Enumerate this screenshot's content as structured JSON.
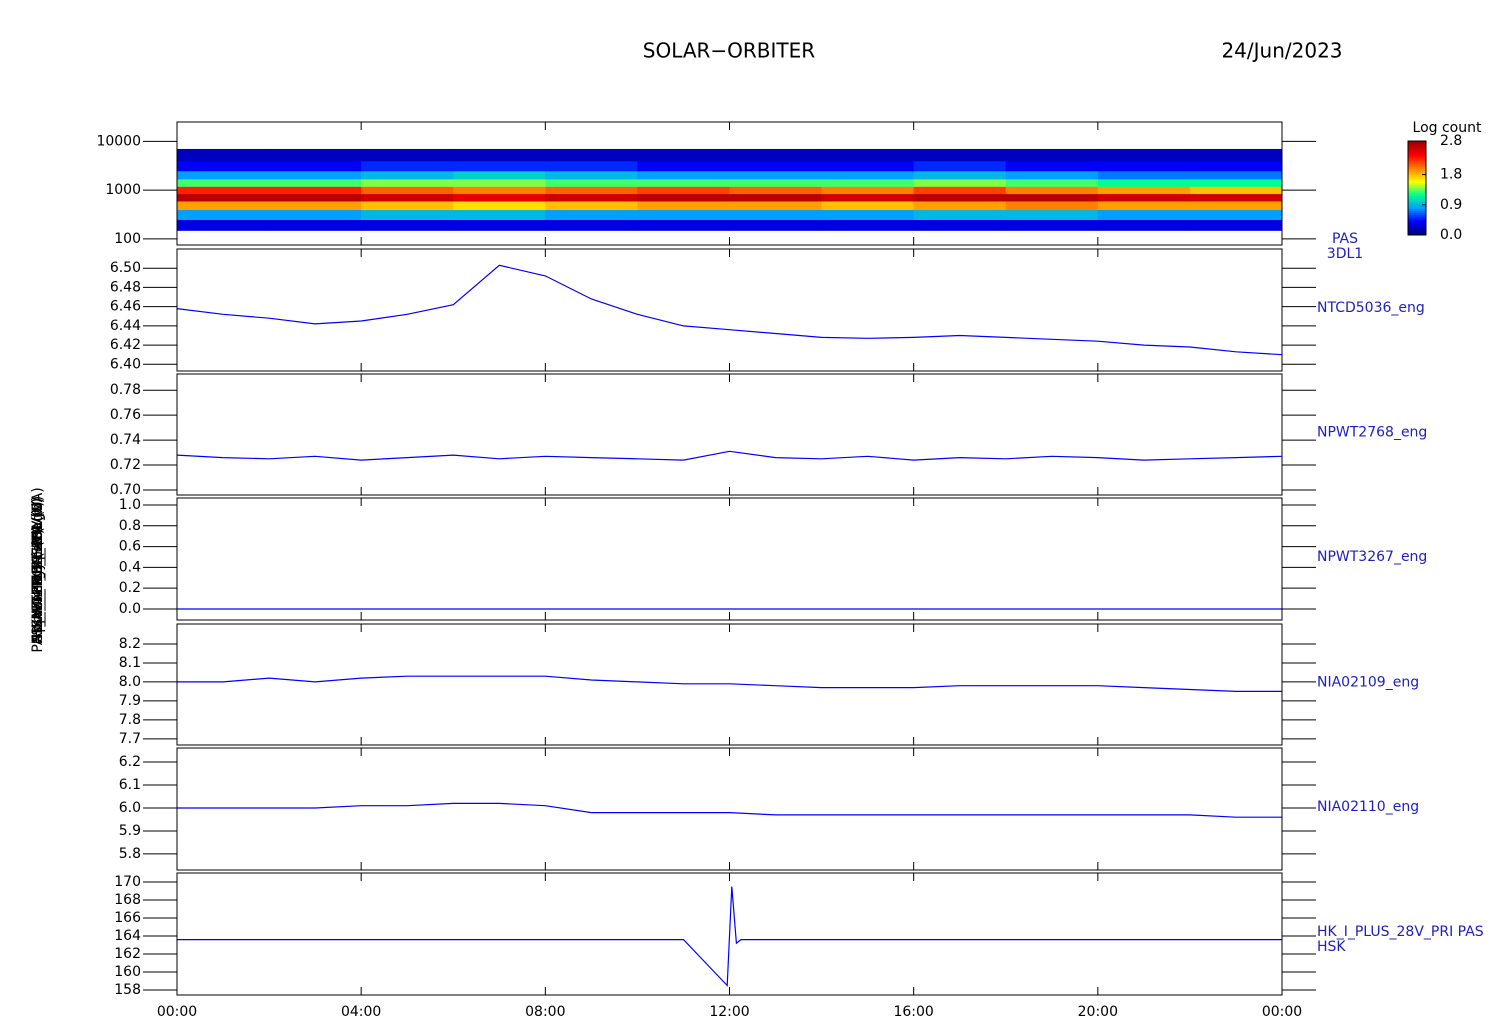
{
  "title": "SOLAR−ORBITER",
  "date": "24/Jun/2023",
  "chart_data": [
    {
      "type": "heatmap",
      "ylabel": "Energy (eV)",
      "log_y": true,
      "ylim": [
        75,
        25000
      ],
      "yticks": [
        100,
        1000,
        10000
      ],
      "x_edges": [
        0,
        2,
        4,
        6,
        8,
        10,
        12,
        14,
        16,
        18,
        20,
        22,
        24
      ],
      "y_edges": [
        150,
        250,
        400,
        600,
        850,
        1200,
        1700,
        2500,
        4000,
        7000
      ],
      "z": [
        [
          0.3,
          0.3,
          0.3,
          0.3,
          0.3,
          0.3,
          0.3,
          0.3,
          0.3,
          0.3,
          0.3,
          0.3
        ],
        [
          0.8,
          0.8,
          0.9,
          0.9,
          0.8,
          0.8,
          0.8,
          0.8,
          0.9,
          0.9,
          0.8,
          0.8
        ],
        [
          1.9,
          1.9,
          1.8,
          1.7,
          1.8,
          1.9,
          1.9,
          1.8,
          1.9,
          2.0,
          1.9,
          1.9
        ],
        [
          2.7,
          2.7,
          2.6,
          2.5,
          2.6,
          2.7,
          2.7,
          2.6,
          2.7,
          2.7,
          2.6,
          2.6
        ],
        [
          2.3,
          2.3,
          2.1,
          2.0,
          2.1,
          2.2,
          2.1,
          2.0,
          2.2,
          2.0,
          1.9,
          1.8
        ],
        [
          1.3,
          1.3,
          1.4,
          1.4,
          1.3,
          1.3,
          1.3,
          1.3,
          1.4,
          1.3,
          1.2,
          1.2
        ],
        [
          0.8,
          0.8,
          0.9,
          1.0,
          0.9,
          0.8,
          0.8,
          0.8,
          0.9,
          0.8,
          0.7,
          0.7
        ],
        [
          0.4,
          0.4,
          0.5,
          0.5,
          0.5,
          0.4,
          0.4,
          0.4,
          0.5,
          0.4,
          0.4,
          0.4
        ],
        [
          0.2,
          0.2,
          0.2,
          0.2,
          0.2,
          0.2,
          0.2,
          0.2,
          0.2,
          0.2,
          0.2,
          0.2
        ]
      ],
      "zlabel": "Log count",
      "zlim": [
        0,
        2.8
      ],
      "zticks": [
        {
          "value": 0,
          "label": "0.0"
        },
        0.9,
        1.8,
        2.8
      ],
      "colormap": [
        "#000080",
        "#0000ff",
        "#00a0ff",
        "#00ff90",
        "#ffff00",
        "#ff8000",
        "#ff0000",
        "#a00000"
      ],
      "labels": [
        "PAS",
        "3DL1"
      ]
    },
    {
      "type": "line",
      "ylabel": "Approx Temp (DegC)",
      "ylim": [
        6.393,
        6.52
      ],
      "yticks": [
        {
          "value": 6.4,
          "label": "6.40"
        },
        6.42,
        6.44,
        6.46,
        6.48,
        {
          "value": 6.5,
          "label": "6.50"
        }
      ],
      "x": [
        0,
        1,
        2,
        3,
        4,
        5,
        6,
        7,
        8,
        9,
        10,
        11,
        12,
        13,
        14,
        15,
        16,
        17,
        18,
        19,
        20,
        21,
        22,
        23,
        24
      ],
      "values": [
        6.458,
        6.452,
        6.448,
        6.442,
        6.445,
        6.452,
        6.462,
        6.503,
        6.492,
        6.468,
        6.452,
        6.44,
        6.436,
        6.432,
        6.428,
        6.427,
        6.428,
        6.43,
        6.428,
        6.426,
        6.424,
        6.42,
        6.418,
        6.413,
        6.41
      ],
      "color": "#0000ff",
      "labels": [
        "NTCD5036_eng"
      ]
    },
    {
      "type": "line",
      "ylabel": "SWA_TEMP_EAS1 (V)",
      "ylim": [
        0.696,
        0.793
      ],
      "yticks": [
        {
          "value": 0.7,
          "label": "0.70"
        },
        0.72,
        0.74,
        0.76,
        0.78
      ],
      "x": [
        0,
        1,
        2,
        3,
        4,
        5,
        6,
        7,
        8,
        9,
        10,
        11,
        12,
        13,
        14,
        15,
        16,
        17,
        18,
        19,
        20,
        21,
        22,
        23,
        24
      ],
      "values": [
        0.728,
        0.726,
        0.725,
        0.727,
        0.724,
        0.726,
        0.728,
        0.725,
        0.727,
        0.726,
        0.725,
        0.724,
        0.731,
        0.726,
        0.725,
        0.727,
        0.724,
        0.726,
        0.725,
        0.727,
        0.726,
        0.724,
        0.725,
        0.726,
        0.727
      ],
      "color": "#0000ff",
      "labels": [
        "NPWT2768_eng"
      ]
    },
    {
      "type": "line",
      "ylabel": "SWA_T_EAS2 (V)",
      "ylim": [
        -0.106,
        1.067
      ],
      "yticks": [
        {
          "value": 0,
          "label": "0.0"
        },
        0.2,
        0.4,
        0.6,
        0.8,
        {
          "value": 1,
          "label": "1.0"
        }
      ],
      "x": [
        0,
        1,
        2,
        3,
        4,
        5,
        6,
        7,
        8,
        9,
        10,
        11,
        12,
        13,
        14,
        15,
        16,
        17,
        18,
        19,
        20,
        21,
        22,
        23,
        24
      ],
      "values": [
        0,
        0,
        0,
        0,
        0,
        0,
        0,
        0,
        0,
        0,
        0,
        0,
        0,
        0,
        0,
        0,
        0,
        0,
        0,
        0,
        0,
        0,
        0,
        0,
        0
      ],
      "color": "#0000ff",
      "labels": [
        "NPWT3267_eng"
      ]
    },
    {
      "type": "line",
      "ylabel": "HK_V_PLUS_16V (V)",
      "ylim": [
        7.668,
        8.305
      ],
      "yticks": [
        7.7,
        7.8,
        7.9,
        {
          "value": 8,
          "label": "8.0"
        },
        8.1,
        8.2
      ],
      "x": [
        0,
        1,
        2,
        3,
        4,
        5,
        6,
        7,
        8,
        9,
        10,
        11,
        12,
        13,
        14,
        15,
        16,
        17,
        18,
        19,
        20,
        21,
        22,
        23,
        24
      ],
      "values": [
        8.0,
        8.0,
        8.02,
        8.0,
        8.02,
        8.03,
        8.03,
        8.03,
        8.03,
        8.01,
        8.0,
        7.99,
        7.99,
        7.98,
        7.97,
        7.97,
        7.97,
        7.98,
        7.98,
        7.98,
        7.98,
        7.97,
        7.96,
        7.95,
        7.95
      ],
      "color": "#0000ff",
      "labels": [
        "NIA02109_eng"
      ]
    },
    {
      "type": "line",
      "ylabel": "HK_V_MINUS_16V (V)",
      "ylim": [
        5.73,
        6.261
      ],
      "yticks": [
        5.8,
        5.9,
        {
          "value": 6,
          "label": "6.0"
        },
        6.1,
        6.2
      ],
      "x": [
        0,
        1,
        2,
        3,
        4,
        5,
        6,
        7,
        8,
        9,
        10,
        11,
        12,
        13,
        14,
        15,
        16,
        17,
        18,
        19,
        20,
        21,
        22,
        23,
        24
      ],
      "values": [
        6.0,
        6.0,
        6.0,
        6.0,
        6.01,
        6.01,
        6.02,
        6.02,
        6.01,
        5.98,
        5.98,
        5.98,
        5.98,
        5.97,
        5.97,
        5.97,
        5.97,
        5.97,
        5.97,
        5.97,
        5.97,
        5.97,
        5.97,
        5.96,
        5.96
      ],
      "color": "#0000ff",
      "labels": [
        "NIA02110_eng"
      ]
    },
    {
      "type": "line",
      "ylabel": "PAS_HK_IMON_PRI (mA)",
      "ylim": [
        157.44,
        171
      ],
      "yticks": [
        158,
        160,
        162,
        164,
        166,
        168,
        170
      ],
      "x": [
        0,
        1,
        2,
        3,
        4,
        5,
        6,
        7,
        8,
        9,
        10,
        11,
        11.95,
        12.05,
        12.15,
        12.25,
        13,
        14,
        15,
        16,
        17,
        18,
        19,
        20,
        21,
        22,
        23,
        24
      ],
      "values": [
        163.6,
        163.6,
        163.6,
        163.6,
        163.6,
        163.6,
        163.6,
        163.6,
        163.6,
        163.6,
        163.6,
        163.6,
        158.5,
        169.5,
        163.2,
        163.6,
        163.6,
        163.6,
        163.6,
        163.6,
        163.6,
        163.6,
        163.6,
        163.6,
        163.6,
        163.6,
        163.6,
        163.6
      ],
      "color": "#0000ff",
      "labels": [
        "HK_I_PLUS_28V_PRI PAS",
        "HSK"
      ],
      "xlim": [
        0,
        24
      ],
      "xticks": [
        {
          "value": 0,
          "label": "00:00"
        },
        {
          "value": 4,
          "label": "04:00"
        },
        {
          "value": 8,
          "label": "08:00"
        },
        {
          "value": 12,
          "label": "12:00"
        },
        {
          "value": 16,
          "label": "16:00"
        },
        {
          "value": 20,
          "label": "20:00"
        },
        {
          "value": 24,
          "label": "00:00"
        }
      ]
    }
  ]
}
